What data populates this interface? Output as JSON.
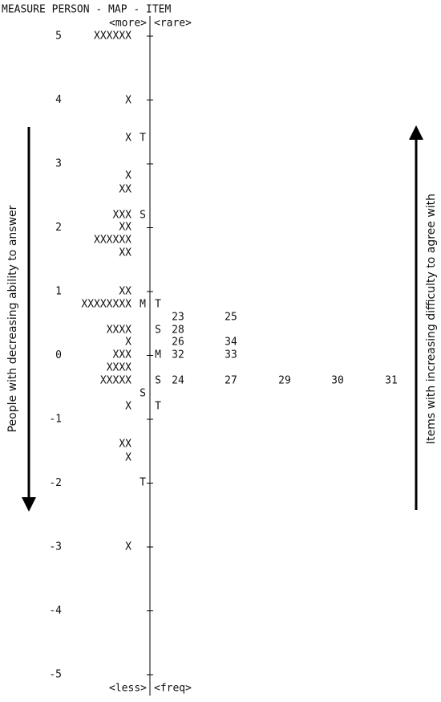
{
  "header": "MEASURE PERSON - MAP - ITEM",
  "top_labels": {
    "person": "<more>",
    "item": "<rare>"
  },
  "bottom_labels": {
    "person": "<less>",
    "item": "<freq>"
  },
  "scale": [
    5,
    4,
    3,
    2,
    1,
    0,
    -1,
    -2,
    -3,
    -4,
    -5
  ],
  "rows": [
    {
      "persons": "XXXXXX"
    },
    {
      "persons": "X"
    },
    {
      "persons": "X",
      "person_marker": "T"
    },
    {
      "persons": "X"
    },
    {
      "persons": "XX"
    },
    {
      "persons": "XXX",
      "person_marker": "S"
    },
    {
      "persons": "XX"
    },
    {
      "persons": "XXXXXX"
    },
    {
      "persons": "XX"
    },
    {
      "persons": "XX"
    },
    {
      "persons": "XXXXXXXX",
      "person_marker": "M",
      "item_marker": "T"
    },
    {
      "items": [
        "23",
        "25"
      ]
    },
    {
      "persons": "XXXX",
      "item_marker": "S",
      "items": [
        "28"
      ]
    },
    {
      "persons": "X",
      "items": [
        "26",
        "34"
      ]
    },
    {
      "persons": "XXX",
      "item_marker": "M",
      "items": [
        "32",
        "33"
      ]
    },
    {
      "persons": "XXXX"
    },
    {
      "persons": "XXXXX",
      "item_marker": "S",
      "items": [
        "24",
        "27",
        "29",
        "30",
        "31"
      ]
    },
    {
      "person_marker": "S"
    },
    {
      "persons": "X",
      "item_marker": "T"
    },
    {
      "persons": "XX"
    },
    {
      "persons": "X"
    },
    {
      "person_marker": "T"
    },
    {
      "persons": "X"
    }
  ],
  "left_arrow_label": "People with decreasing ability to answer",
  "right_arrow_label": "Items with increasing difficulty to agree with"
}
